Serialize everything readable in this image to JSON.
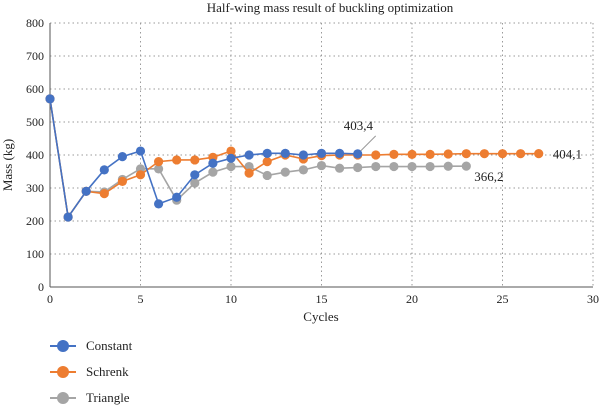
{
  "chart_data": {
    "type": "line",
    "title": "Half-wing mass result of buckling optimization",
    "xlabel": "Cycles",
    "ylabel": "Mass (kg)",
    "xlim": [
      0,
      30
    ],
    "ylim": [
      0,
      800
    ],
    "xticks": [
      0,
      5,
      10,
      15,
      20,
      25,
      30
    ],
    "yticks": [
      0,
      100,
      200,
      300,
      400,
      500,
      600,
      700,
      800
    ],
    "grid": true,
    "legend_position": "bottom-left",
    "series": [
      {
        "name": "Constant",
        "color": "#4472c4",
        "x": [
          0,
          1,
          2,
          3,
          4,
          5,
          6,
          7,
          8,
          9,
          10,
          11,
          12,
          13,
          14,
          15,
          16,
          17
        ],
        "y": [
          570,
          212,
          290,
          355,
          395,
          412,
          252,
          272,
          340,
          375,
          390,
          400,
          405,
          405,
          400,
          405,
          405,
          403.4
        ]
      },
      {
        "name": "Schrenk",
        "color": "#ed7d31",
        "x": [
          0,
          1,
          2,
          3,
          4,
          5,
          6,
          7,
          8,
          9,
          10,
          11,
          12,
          13,
          14,
          15,
          16,
          17,
          18,
          19,
          20,
          21,
          22,
          23,
          24,
          25,
          26,
          27
        ],
        "y": [
          570,
          212,
          290,
          283,
          320,
          340,
          380,
          385,
          385,
          393,
          412,
          345,
          380,
          400,
          388,
          398,
          400,
          400,
          400,
          402,
          402,
          402,
          403,
          404,
          404,
          404,
          404,
          404.1
        ]
      },
      {
        "name": "Triangle",
        "color": "#a5a5a5",
        "x": [
          0,
          1,
          2,
          3,
          4,
          5,
          6,
          7,
          8,
          9,
          10,
          11,
          12,
          13,
          14,
          15,
          16,
          17,
          18,
          19,
          20,
          21,
          22,
          23
        ],
        "y": [
          570,
          212,
          290,
          288,
          326,
          358,
          358,
          263,
          315,
          348,
          365,
          365,
          338,
          348,
          355,
          368,
          360,
          362,
          365,
          365,
          365,
          365,
          366,
          366.2
        ]
      }
    ],
    "annotations": [
      {
        "text": "403,4",
        "x": 17,
        "y": 403.4,
        "series": "Constant"
      },
      {
        "text": "404,1",
        "x": 27,
        "y": 404.1,
        "series": "Schrenk"
      },
      {
        "text": "366,2",
        "x": 23,
        "y": 366.2,
        "series": "Triangle"
      }
    ]
  }
}
